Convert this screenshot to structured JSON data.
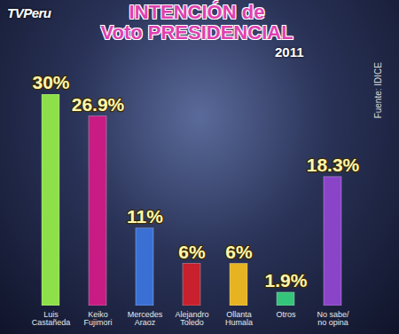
{
  "chart_data": {
    "type": "bar",
    "title": "INTENCIÓN de Voto PRESIDENCIAL",
    "subtitle": "2011",
    "annotations": [
      "TVPeru",
      "Fuente: IDICE"
    ],
    "categories": [
      "Luis Castañeda",
      "Keiko Fujimori",
      "Mercedes Araoz",
      "Alejandro Toledo",
      "Ollanta Humala",
      "Otros",
      "No sabe/ no opina"
    ],
    "values": [
      30,
      26.9,
      11,
      6,
      6,
      1.9,
      18.3
    ],
    "value_labels": [
      "30%",
      "26.9%",
      "11%",
      "6%",
      "6%",
      "1.9%",
      "18.3%"
    ],
    "colors": [
      "#8ee04a",
      "#c81c84",
      "#3a70d4",
      "#c8202c",
      "#e6b422",
      "#34c47a",
      "#8a44c8"
    ],
    "ylim": [
      0,
      30
    ],
    "data_labels": true,
    "tick_labels": "x"
  }
}
